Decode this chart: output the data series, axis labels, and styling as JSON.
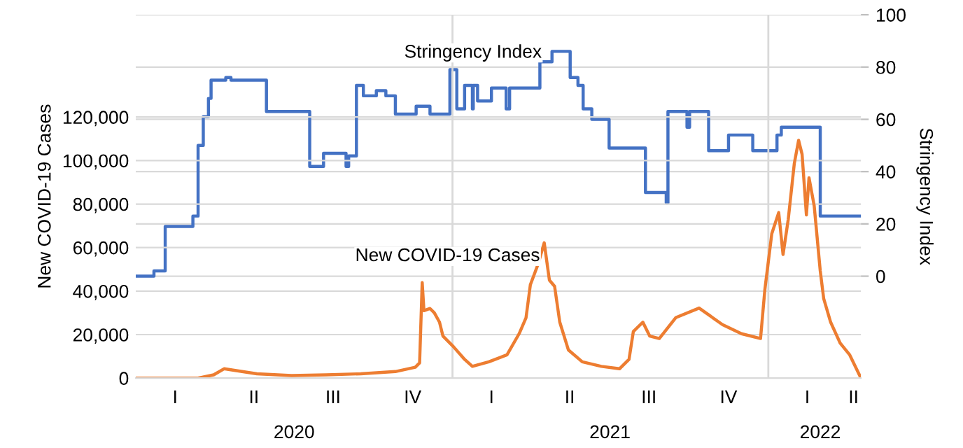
{
  "chart_data": {
    "type": "line",
    "xlabel": null,
    "ylabel": "New COVID-19 Cases",
    "y2label": "Stringency Index",
    "series": [
      {
        "type": "step",
        "axis": "y2",
        "color": "#4472c4",
        "x": [
          "2020-01-01",
          "2020-01-22",
          "2020-02-04",
          "2020-03-07",
          "2020-03-13",
          "2020-03-19",
          "2020-03-25",
          "2020-03-28",
          "2020-04-14",
          "2020-04-20",
          "2020-05-31",
          "2020-07-20",
          "2020-08-05",
          "2020-08-31",
          "2020-09-03",
          "2020-09-12",
          "2020-09-20",
          "2020-10-05",
          "2020-10-16",
          "2020-10-27",
          "2020-11-20",
          "2020-12-06",
          "2020-12-29",
          "2021-01-06",
          "2021-01-15",
          "2021-01-24",
          "2021-01-25",
          "2021-01-30",
          "2021-02-15",
          "2021-03-04",
          "2021-03-08",
          "2021-04-12",
          "2021-04-26",
          "2021-05-17",
          "2021-05-26",
          "2021-06-01",
          "2021-06-11",
          "2021-07-01",
          "2021-08-12",
          "2021-09-05",
          "2021-09-07",
          "2021-09-29",
          "2021-10-02",
          "2021-10-24",
          "2021-11-16",
          "2021-12-14",
          "2022-01-11",
          "2022-01-16",
          "2022-03-02",
          "2022-04-18"
        ],
        "values": [
          0,
          2,
          19,
          23,
          50,
          61,
          68,
          75,
          76,
          75,
          63,
          42,
          47,
          42,
          46,
          73,
          69,
          71,
          69,
          62,
          65,
          62,
          79,
          64,
          73,
          64,
          73,
          67,
          72,
          64,
          72,
          82,
          86,
          76,
          73,
          64,
          60,
          49,
          32,
          28,
          63,
          57,
          63,
          48,
          54,
          48,
          54,
          57,
          23,
          23
        ]
      },
      {
        "color": "#ed7d31",
        "x": [
          "2020-01-01",
          "2020-03-13",
          "2020-03-31",
          "2020-04-12",
          "2020-04-25",
          "2020-05-20",
          "2020-06-29",
          "2020-08-08",
          "2020-09-17",
          "2020-10-27",
          "2020-11-19",
          "2020-11-24",
          "2020-11-27",
          "2020-11-29",
          "2020-12-06",
          "2020-12-11",
          "2020-12-17",
          "2020-12-21",
          "2021-01-02",
          "2021-01-15",
          "2021-01-24",
          "2021-02-12",
          "2021-03-05",
          "2021-03-19",
          "2021-03-27",
          "2021-04-01",
          "2021-04-10",
          "2021-04-17",
          "2021-04-23",
          "2021-04-29",
          "2021-05-05",
          "2021-05-15",
          "2021-05-31",
          "2021-06-22",
          "2021-07-13",
          "2021-07-24",
          "2021-07-29",
          "2021-08-09",
          "2021-08-17",
          "2021-08-28",
          "2021-09-16",
          "2021-10-13",
          "2021-11-09",
          "2021-12-01",
          "2021-12-23",
          "2021-12-28",
          "2022-01-05",
          "2022-01-13",
          "2022-01-18",
          "2022-01-24",
          "2022-01-31",
          "2022-02-05",
          "2022-02-09",
          "2022-02-14",
          "2022-02-17",
          "2022-02-23",
          "2022-03-02",
          "2022-03-06",
          "2022-03-14",
          "2022-03-25",
          "2022-04-05",
          "2022-04-18"
        ],
        "values": [
          0,
          0,
          1500,
          4300,
          3500,
          2000,
          1200,
          1500,
          2000,
          3000,
          5000,
          7000,
          43900,
          31000,
          32000,
          30000,
          25700,
          19300,
          14500,
          8600,
          5400,
          7500,
          10700,
          20400,
          27800,
          42900,
          52500,
          62200,
          45000,
          42200,
          25700,
          12900,
          7500,
          5400,
          4300,
          8600,
          21400,
          25700,
          19300,
          18200,
          27800,
          32200,
          24600,
          20400,
          18200,
          40700,
          66400,
          76100,
          56800,
          72900,
          98600,
          109300,
          102900,
          75000,
          92100,
          79200,
          49300,
          36500,
          25700,
          16100,
          10700,
          0
        ]
      }
    ],
    "annotations": [
      "Stringency Index",
      "New COVID-19 Cases",
      "I",
      "II",
      "III",
      "IV",
      "I",
      "II",
      "III",
      "IV",
      "I",
      "II"
    ],
    "xlim": [
      "2020-01-01",
      "2022-04-18"
    ],
    "xticks": [
      {
        "value": "2020-07-02",
        "label": "2020"
      },
      {
        "value": "2021-07-02",
        "label": "2021"
      },
      {
        "value": "2022-03-02",
        "label": "2022"
      }
    ],
    "ylim": [
      0,
      167000
    ],
    "yticks": [
      0,
      {
        "value": 20000,
        "label": "20,000"
      },
      {
        "value": 40000,
        "label": "40,000"
      },
      {
        "value": 60000,
        "label": "60,000"
      },
      {
        "value": 80000,
        "label": "80,000"
      },
      {
        "value": 100000,
        "label": "100,000"
      },
      {
        "value": 120000,
        "label": "120,000"
      }
    ],
    "y2lim": [
      -39,
      100
    ],
    "y2ticks": [
      0,
      20,
      40,
      60,
      80,
      100
    ],
    "ref_lines": [
      {
        "axis": "x",
        "value": "2021-01-01",
        "color": "#d9d9d9"
      },
      {
        "axis": "x",
        "value": "2022-01-01",
        "color": "#d9d9d9"
      }
    ],
    "grid": "y",
    "legend": false
  }
}
